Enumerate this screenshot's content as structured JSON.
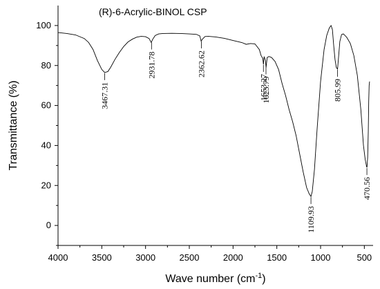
{
  "chart_data": {
    "type": "line",
    "title": "(R)-6-Acrylic-BINOL CSP",
    "xlabel": "Wave number (cm",
    "xlabel_sup": "-1",
    "xlabel_close": ")",
    "ylabel": "Transmittance (%)",
    "xlim": [
      4000,
      400
    ],
    "ylim": [
      -10,
      110
    ],
    "x_reversed": true,
    "x_ticks": [
      4000,
      3500,
      3000,
      2500,
      2000,
      1500,
      1000,
      500
    ],
    "y_ticks": [
      0,
      20,
      40,
      60,
      80,
      100
    ],
    "grid": false,
    "series": [
      {
        "color": "#000000",
        "points": [
          [
            4000,
            96.5
          ],
          [
            3900,
            96
          ],
          [
            3800,
            95.3
          ],
          [
            3700,
            93.5
          ],
          [
            3650,
            91.5
          ],
          [
            3600,
            88
          ],
          [
            3550,
            82.5
          ],
          [
            3500,
            78
          ],
          [
            3467,
            76.5
          ],
          [
            3430,
            77
          ],
          [
            3400,
            79
          ],
          [
            3350,
            83
          ],
          [
            3300,
            86.5
          ],
          [
            3250,
            89.5
          ],
          [
            3200,
            91.8
          ],
          [
            3150,
            93.2
          ],
          [
            3100,
            94.2
          ],
          [
            3050,
            94.6
          ],
          [
            3000,
            94.4
          ],
          [
            2960,
            93.5
          ],
          [
            2935,
            91.5
          ],
          [
            2920,
            93
          ],
          [
            2890,
            95
          ],
          [
            2850,
            95.8
          ],
          [
            2800,
            96
          ],
          [
            2700,
            96.1
          ],
          [
            2600,
            96
          ],
          [
            2500,
            95.8
          ],
          [
            2420,
            95.6
          ],
          [
            2380,
            94.8
          ],
          [
            2365,
            92.2
          ],
          [
            2350,
            93.2
          ],
          [
            2320,
            94.5
          ],
          [
            2280,
            94.6
          ],
          [
            2200,
            94.3
          ],
          [
            2100,
            93.6
          ],
          [
            2000,
            92.5
          ],
          [
            1900,
            91.5
          ],
          [
            1850,
            90.6
          ],
          [
            1800,
            91
          ],
          [
            1750,
            90.8
          ],
          [
            1700,
            88
          ],
          [
            1680,
            85
          ],
          [
            1660,
            83.5
          ],
          [
            1653,
            80.5
          ],
          [
            1645,
            84.5
          ],
          [
            1630,
            82.5
          ],
          [
            1623,
            79
          ],
          [
            1610,
            84
          ],
          [
            1590,
            84.5
          ],
          [
            1560,
            84
          ],
          [
            1520,
            82
          ],
          [
            1480,
            78
          ],
          [
            1440,
            71
          ],
          [
            1400,
            65
          ],
          [
            1360,
            58
          ],
          [
            1320,
            52
          ],
          [
            1280,
            45
          ],
          [
            1240,
            36
          ],
          [
            1200,
            27
          ],
          [
            1160,
            19
          ],
          [
            1130,
            15.8
          ],
          [
            1110,
            14.5
          ],
          [
            1095,
            17
          ],
          [
            1070,
            28
          ],
          [
            1040,
            48
          ],
          [
            1000,
            72
          ],
          [
            960,
            88
          ],
          [
            930,
            95
          ],
          [
            900,
            98.8
          ],
          [
            880,
            100
          ],
          [
            865,
            98
          ],
          [
            850,
            90
          ],
          [
            835,
            83
          ],
          [
            820,
            79
          ],
          [
            806,
            78.2
          ],
          [
            795,
            84
          ],
          [
            780,
            92
          ],
          [
            760,
            95.5
          ],
          [
            740,
            95.8
          ],
          [
            720,
            95
          ],
          [
            700,
            94
          ],
          [
            660,
            91
          ],
          [
            620,
            85
          ],
          [
            580,
            75
          ],
          [
            540,
            58
          ],
          [
            510,
            40
          ],
          [
            490,
            33
          ],
          [
            475,
            29.5
          ],
          [
            470,
            29
          ],
          [
            462,
            34
          ],
          [
            455,
            47
          ],
          [
            450,
            62
          ],
          [
            445,
            70
          ],
          [
            440,
            72
          ]
        ]
      }
    ],
    "annotations": [
      {
        "x": 3467.31,
        "text": "3467.31"
      },
      {
        "x": 2931.78,
        "text": "2931.78"
      },
      {
        "x": 2362.62,
        "text": "2362.62"
      },
      {
        "x": 1653.27,
        "text": "1653.27"
      },
      {
        "x": 1623.79,
        "text": "1623.79"
      },
      {
        "x": 1109.93,
        "text": "1109.93"
      },
      {
        "x": 805.99,
        "text": "805.99"
      },
      {
        "x": 470.56,
        "text": "470.56"
      }
    ]
  }
}
